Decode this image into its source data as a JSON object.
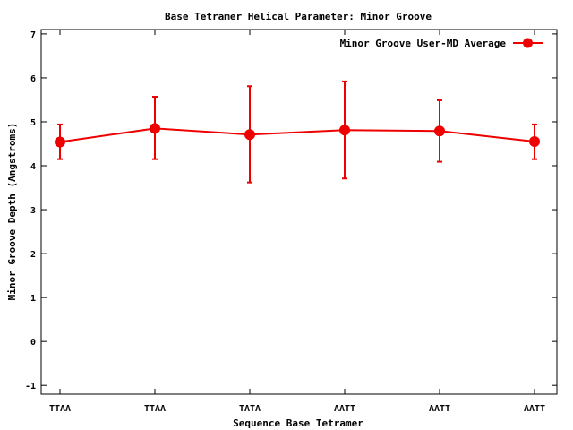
{
  "chart_data": {
    "type": "line",
    "title": "Base Tetramer Helical Parameter: Minor Groove",
    "xlabel": "Sequence Base Tetramer",
    "ylabel": "Minor Groove Depth (Angstroms)",
    "categories": [
      "TTAA",
      "TTAA",
      "TATA",
      "AATT",
      "AATT",
      "AATT"
    ],
    "ylim": [
      -1.2,
      7.1
    ],
    "yticks": [
      "-1",
      "0",
      "1",
      "2",
      "3",
      "4",
      "5",
      "6",
      "7"
    ],
    "grid": false,
    "legend_position": "top-right",
    "series": [
      {
        "name": "Minor Groove User-MD Average",
        "color": "#ee0000",
        "values": [
          4.54,
          4.85,
          4.71,
          4.81,
          4.79,
          4.55
        ],
        "err_low": [
          4.15,
          4.15,
          3.62,
          3.71,
          4.09,
          4.15
        ],
        "err_high": [
          4.94,
          5.57,
          5.81,
          5.92,
          5.49,
          4.94
        ]
      }
    ]
  }
}
